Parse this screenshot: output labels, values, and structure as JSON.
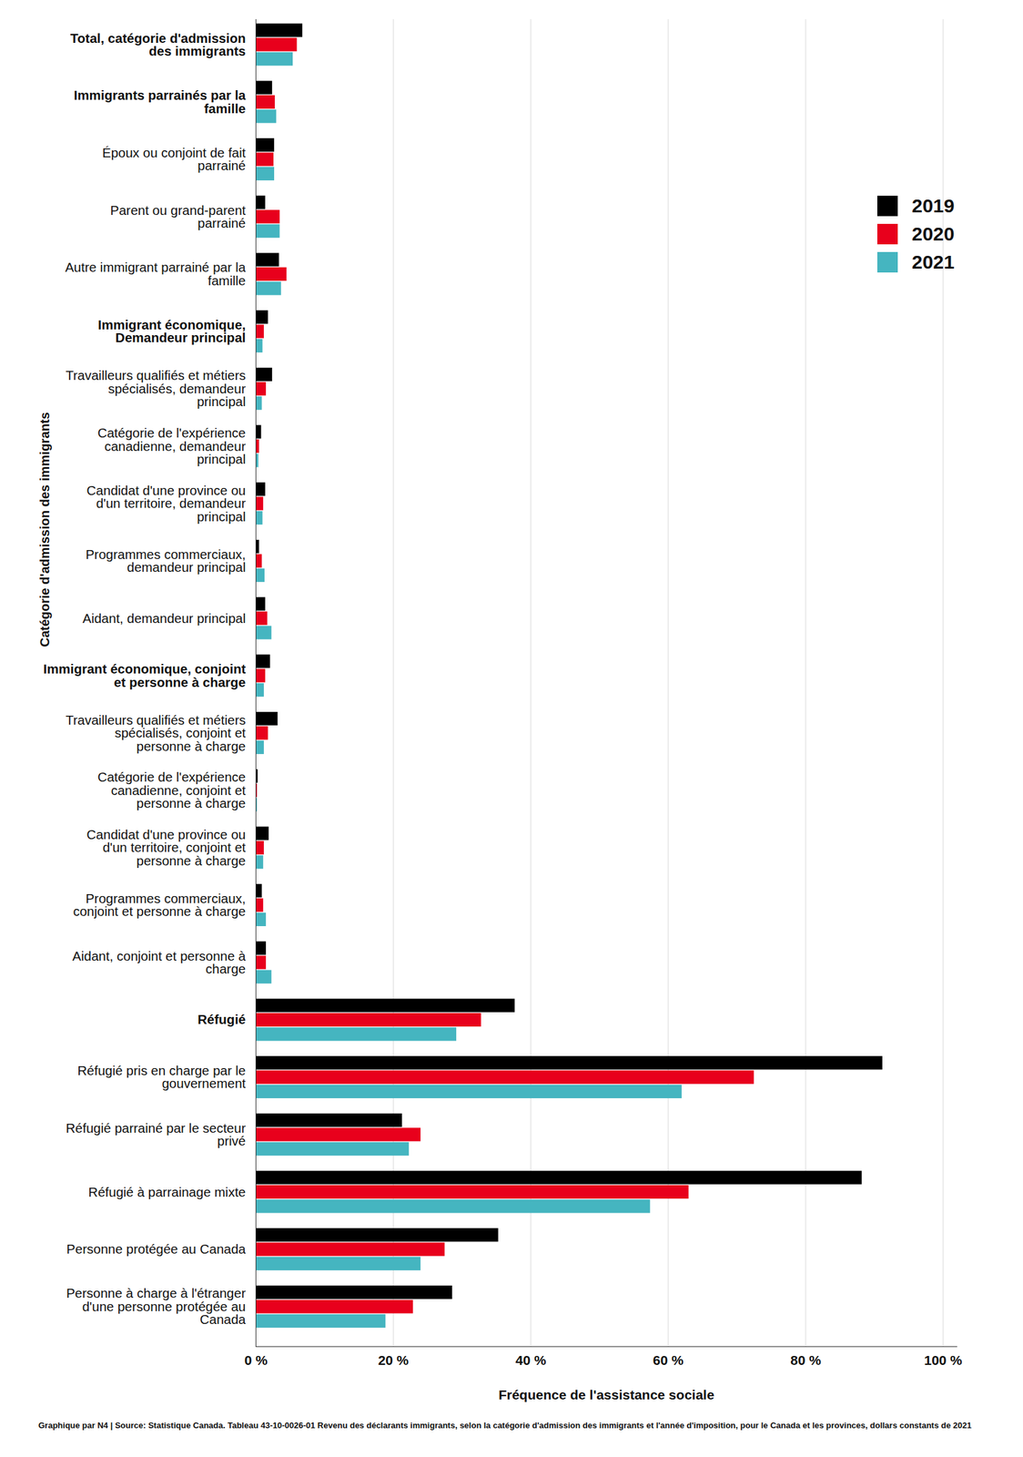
{
  "chart_data": {
    "type": "bar",
    "orientation": "horizontal",
    "x_label": "Fréquence de l'assistance sociale",
    "y_label": "Catégorie d'admission des immigrants",
    "caption": "Graphique par N4 | Source: Statistique Canada. Tableau 43-10-0026-01 Revenu des déclarants immigrants, selon la catégorie d'admission des immigrants et l'année d'imposition, pour le Canada et les provinces, dollars constants de 2021",
    "categories": [
      "Total, catégorie d'admission des immigrants",
      "Immigrants parrainés par la famille",
      "Époux ou conjoint de fait parrainé",
      "Parent ou grand-parent parrainé",
      "Autre immigrant parrainé par la famille",
      "Immigrant économique, Demandeur principal",
      "Travailleurs qualifiés et métiers spécialisés, demandeur principal",
      "Catégorie de l'expérience canadienne, demandeur principal",
      "Candidat d'une province ou d'un territoire, demandeur principal",
      "Programmes commerciaux, demandeur principal",
      "Aidant, demandeur principal",
      "Immigrant économique, conjoint et personne à charge",
      "Travailleurs qualifiés et métiers spécialisés, conjoint et personne à charge",
      "Catégorie de l'expérience canadienne, conjoint et personne à charge",
      "Candidat d'une province ou d'un territoire, conjoint et personne à charge",
      "Programmes commerciaux, conjoint et personne à charge",
      "Aidant, conjoint et personne à charge",
      "Réfugié",
      "Réfugié pris en charge par le gouvernement",
      "Réfugié parrainé par le secteur privé",
      "Réfugié à parrainage mixte",
      "Personne protégée au Canada",
      "Personne à charge à l'étranger d'une personne protégée au Canada"
    ],
    "series": [
      {
        "name": "2019",
        "color": "#000000",
        "values": [
          6.8,
          2.4,
          2.7,
          1.4,
          3.4,
          1.8,
          2.4,
          0.8,
          1.4,
          0.5,
          1.4,
          2.1,
          3.2,
          0.3,
          1.9,
          0.9,
          1.5,
          37.7,
          91.2,
          21.3,
          88.2,
          35.3,
          28.6
        ]
      },
      {
        "name": "2020",
        "color": "#e8001c",
        "values": [
          6.0,
          2.8,
          2.6,
          3.5,
          4.5,
          1.2,
          1.5,
          0.5,
          1.1,
          0.9,
          1.7,
          1.4,
          1.8,
          0.2,
          1.2,
          1.1,
          1.5,
          32.8,
          72.5,
          24.0,
          63.0,
          27.5,
          22.9
        ]
      },
      {
        "name": "2021",
        "color": "#45b5c0",
        "values": [
          5.4,
          3.0,
          2.7,
          3.5,
          3.7,
          1.0,
          0.9,
          0.4,
          1.0,
          1.3,
          2.3,
          1.2,
          1.2,
          0.2,
          1.1,
          1.5,
          2.3,
          29.2,
          62.0,
          22.3,
          57.4,
          24.0,
          18.9
        ]
      }
    ],
    "xlim": [
      0,
      102
    ],
    "xticks": [
      {
        "value": 0,
        "label": "0 %"
      },
      {
        "value": 20,
        "label": "20 %"
      },
      {
        "value": 40,
        "label": "40 %"
      },
      {
        "value": 60,
        "label": "60 %"
      },
      {
        "value": 80,
        "label": "80 %"
      },
      {
        "value": 100,
        "label": "100 %"
      }
    ],
    "grid": true,
    "legend": "top-right"
  }
}
